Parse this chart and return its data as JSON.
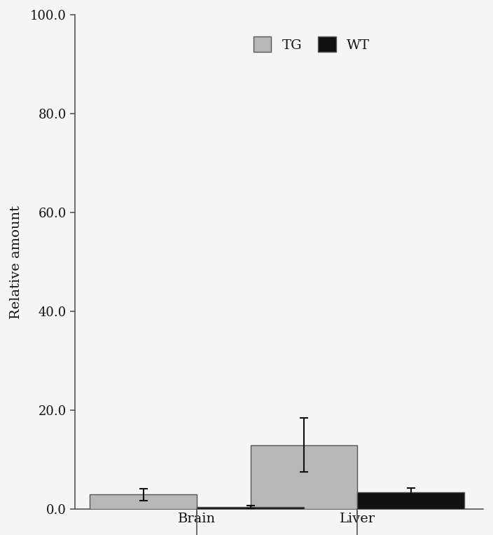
{
  "categories": [
    "Brain",
    "Liver"
  ],
  "tg_values": [
    3.0,
    13.0
  ],
  "wt_values": [
    0.5,
    3.5
  ],
  "tg_errors": [
    1.2,
    5.5
  ],
  "wt_errors": [
    0.3,
    0.8
  ],
  "tg_color": "#b8b8b8",
  "wt_color": "#111111",
  "ylabel": "Relative amount",
  "ylim": [
    0.0,
    100.0
  ],
  "yticks": [
    0.0,
    20.0,
    40.0,
    60.0,
    80.0,
    100.0
  ],
  "legend_labels": [
    "TG",
    "WT"
  ],
  "bar_width": 0.28,
  "group_positions": [
    0.28,
    0.75
  ],
  "figsize": [
    7.04,
    7.63
  ],
  "dpi": 100,
  "background_color": "#f5f5f5",
  "error_capsize": 4,
  "error_linewidth": 1.5,
  "error_color": "#111111",
  "spine_color": "#555555",
  "tick_color": "#555555",
  "text_color": "#111111",
  "font_size_ticks": 13,
  "font_size_labels": 14,
  "font_size_legend": 14
}
